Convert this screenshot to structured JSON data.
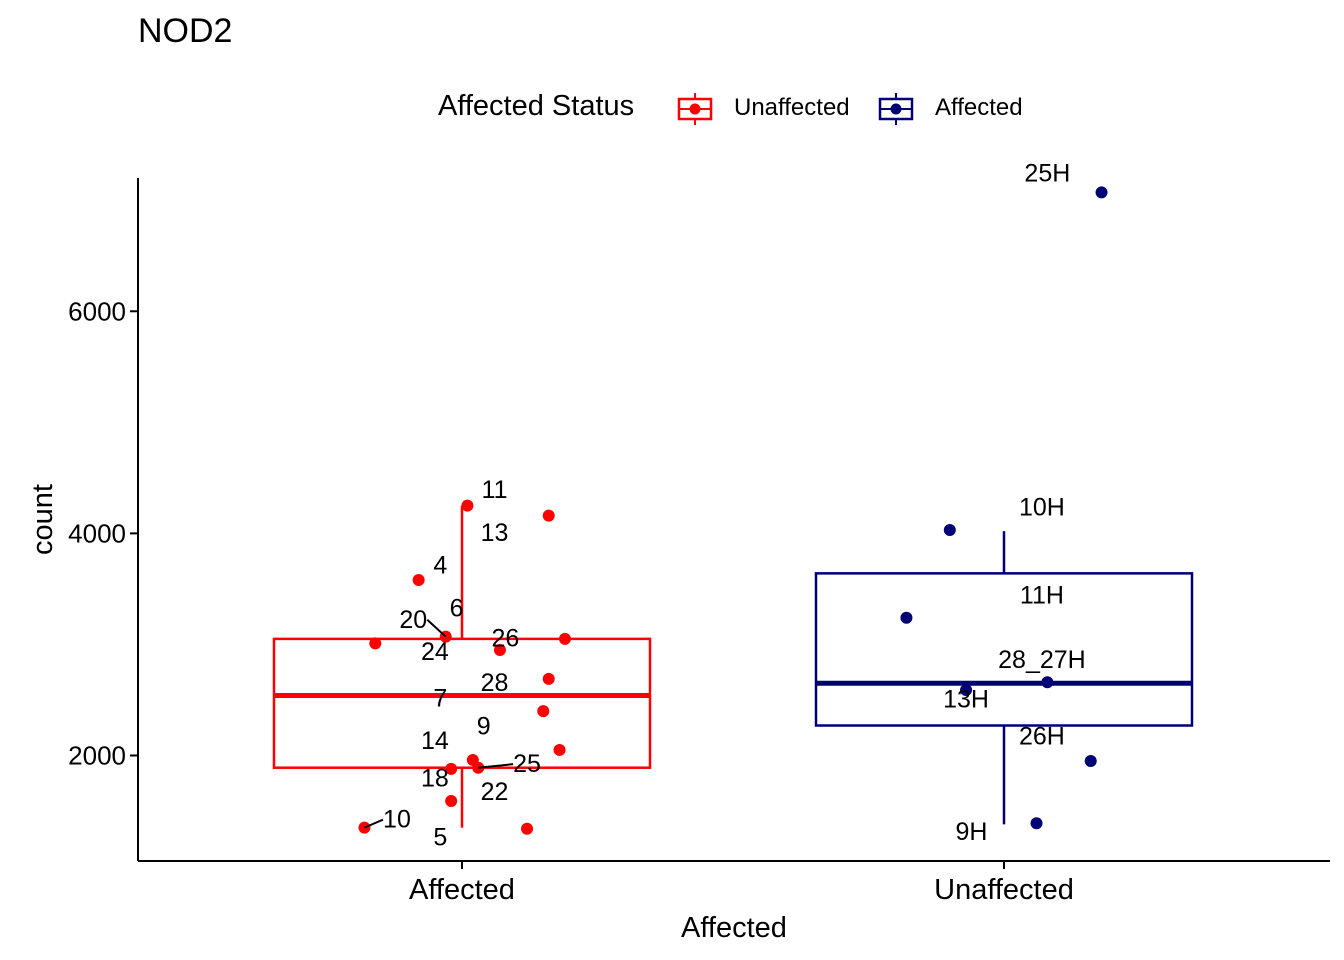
{
  "title": "NOD2",
  "colors": {
    "unaffected": "#FF0000",
    "affected": "#000075"
  },
  "legend": {
    "title": "Affected Status",
    "items": [
      {
        "label": "Unaffected",
        "color": "#FF0000"
      },
      {
        "label": "Affected",
        "color": "#000075"
      }
    ]
  },
  "chart_data": {
    "type": "box",
    "title": "NOD2",
    "xlabel": "Affected",
    "ylabel": "count",
    "categories": [
      "Affected",
      "Unaffected"
    ],
    "ylim": [
      1050,
      7200
    ],
    "yticks": [
      2000,
      4000,
      6000
    ],
    "legend_position": "top",
    "boxes": [
      {
        "category": "Affected",
        "series": "Unaffected",
        "color": "#FF0000",
        "whisker_low": 1350,
        "q1": 1890,
        "median": 2540,
        "q3": 3050,
        "whisker_high": 4250
      },
      {
        "category": "Unaffected",
        "series": "Affected",
        "color": "#000075",
        "whisker_low": 1380,
        "q1": 2270,
        "median": 2650,
        "q3": 3640,
        "whisker_high": 4020
      }
    ],
    "series": [
      {
        "name": "Unaffected",
        "category": "Affected",
        "color": "#FF0000",
        "points": [
          {
            "label": "11",
            "x": 0.01,
            "y": 4250,
            "lx": 0.06,
            "ly": 4320
          },
          {
            "label": "13",
            "x": 0.16,
            "y": 4160,
            "lx": 0.06,
            "ly": 3930
          },
          {
            "label": "4",
            "x": -0.08,
            "y": 3580,
            "lx": -0.04,
            "ly": 3640
          },
          {
            "label": "20",
            "x": -0.03,
            "y": 3070,
            "lx": -0.09,
            "ly": 3150,
            "seg": true
          },
          {
            "label": "6",
            "x": 0.19,
            "y": 3050,
            "lx": -0.01,
            "ly": 3250
          },
          {
            "label": "24",
            "x": -0.16,
            "y": 3010,
            "lx": -0.05,
            "ly": 2860
          },
          {
            "label": "26",
            "x": 0.07,
            "y": 2950,
            "lx": 0.08,
            "ly": 2980
          },
          {
            "label": "28",
            "x": 0.16,
            "y": 2690,
            "lx": 0.06,
            "ly": 2580
          },
          {
            "label": "7",
            "x": 0.15,
            "y": 2400,
            "lx": -0.04,
            "ly": 2440
          },
          {
            "label": "9",
            "x": 0.18,
            "y": 2050,
            "lx": 0.04,
            "ly": 2190
          },
          {
            "label": "14",
            "x": 0.02,
            "y": 1960,
            "lx": -0.05,
            "ly": 2060
          },
          {
            "label": "25",
            "x": 0.03,
            "y": 1890,
            "lx": 0.12,
            "ly": 1850,
            "seg": true
          },
          {
            "label": "18",
            "x": -0.02,
            "y": 1880,
            "lx": -0.05,
            "ly": 1720
          },
          {
            "label": "22",
            "x": -0.02,
            "y": 1590,
            "lx": 0.06,
            "ly": 1600
          },
          {
            "label": "10",
            "x": -0.18,
            "y": 1350,
            "lx": -0.12,
            "ly": 1350,
            "seg": true
          },
          {
            "label": "5",
            "x": 0.12,
            "y": 1340,
            "lx": -0.04,
            "ly": 1190
          }
        ]
      },
      {
        "name": "Affected",
        "category": "Unaffected",
        "color": "#000075",
        "points": [
          {
            "label": "25H",
            "x": 0.18,
            "y": 7070,
            "lx": 0.08,
            "ly": 7170
          },
          {
            "label": "10H",
            "x": -0.1,
            "y": 4030,
            "lx": 0.07,
            "ly": 4160
          },
          {
            "label": "11H",
            "x": -0.18,
            "y": 3240,
            "lx": 0.07,
            "ly": 3370
          },
          {
            "label": "28_27H",
            "x": 0.08,
            "y": 2660,
            "lx": 0.07,
            "ly": 2790
          },
          {
            "label": "13H",
            "x": -0.07,
            "y": 2590,
            "lx": -0.07,
            "ly": 2430
          },
          {
            "label": "26H",
            "x": 0.16,
            "y": 1950,
            "lx": 0.07,
            "ly": 2100
          },
          {
            "label": "9H",
            "x": 0.06,
            "y": 1390,
            "lx": -0.06,
            "ly": 1240
          }
        ]
      }
    ]
  }
}
